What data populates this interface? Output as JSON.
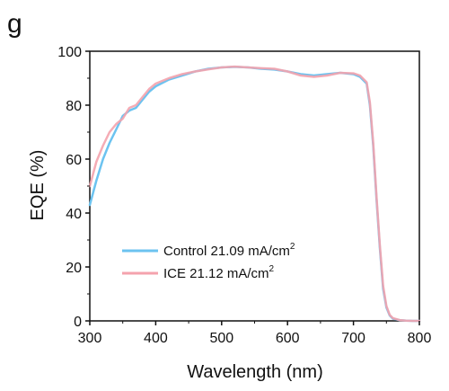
{
  "panel_label": "g",
  "chart_data": {
    "type": "line",
    "title": "",
    "xlabel": "Wavelength (nm)",
    "ylabel": "EQE (%)",
    "xlim": [
      300,
      800
    ],
    "ylim": [
      0,
      100
    ],
    "xticks": [
      300,
      400,
      500,
      600,
      700,
      800
    ],
    "yticks": [
      0,
      20,
      40,
      60,
      80,
      100
    ],
    "grid": false,
    "legend_position": "bottom-left",
    "series": [
      {
        "name": "Control 21.09 mA/cm",
        "name_sup": "2",
        "color": "#6cc3f0",
        "x": [
          300,
          310,
          320,
          330,
          340,
          350,
          360,
          370,
          380,
          390,
          400,
          420,
          440,
          460,
          480,
          500,
          520,
          540,
          560,
          580,
          600,
          620,
          640,
          660,
          680,
          700,
          710,
          720,
          725,
          730,
          735,
          740,
          745,
          750,
          755,
          760,
          770,
          780,
          790,
          800
        ],
        "y": [
          43,
          52,
          60,
          66,
          71,
          76,
          78,
          79,
          82,
          85,
          87,
          89.5,
          91,
          92.5,
          93.5,
          94,
          94.2,
          94,
          93.5,
          93.2,
          92.5,
          91.5,
          91,
          91.5,
          92,
          91.5,
          90.5,
          88,
          80,
          65,
          45,
          27,
          12,
          5,
          2,
          0.8,
          0.3,
          0.1,
          0,
          0
        ]
      },
      {
        "name": "ICE 21.12 mA/cm",
        "name_sup": "2",
        "color": "#f4a3ad",
        "x": [
          300,
          310,
          320,
          330,
          340,
          350,
          360,
          370,
          380,
          390,
          400,
          420,
          440,
          460,
          480,
          500,
          520,
          540,
          560,
          580,
          600,
          620,
          640,
          660,
          680,
          700,
          710,
          720,
          725,
          730,
          735,
          740,
          745,
          750,
          755,
          760,
          770,
          780,
          790,
          800
        ],
        "y": [
          50,
          59,
          65,
          70,
          73,
          75,
          79,
          80,
          83,
          86,
          88,
          90,
          91.5,
          92.5,
          93.3,
          94,
          94.3,
          94,
          93.7,
          93.5,
          92.5,
          91,
          90.5,
          91,
          92,
          91.8,
          91,
          88.5,
          81,
          66,
          46,
          28,
          13,
          5.5,
          2.2,
          1,
          0.3,
          0.1,
          0,
          0
        ]
      }
    ]
  }
}
